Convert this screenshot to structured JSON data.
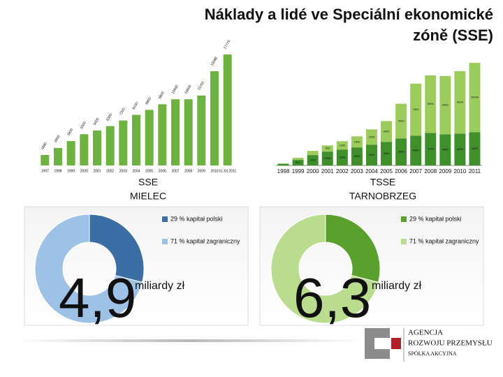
{
  "slide": {
    "title_line1": "Náklady a lidé ve Speciální ekonomické",
    "title_line2": "zóně (SSE)",
    "left_caption_1": "SSE",
    "left_caption_2": "MIELEC",
    "right_caption_1": "TSSE",
    "right_caption_2": "TARNOBRZEG",
    "left_amount": "4,9",
    "left_unit": "miliardy zł",
    "right_amount": "6,3",
    "right_unit": "miliardy zł",
    "logo_1": "AGENCJA",
    "logo_2": "ROZWOJU PRZEMYSŁU",
    "logo_3": "SPÓŁKA AKCYJNA"
  },
  "chart_data": [
    {
      "type": "bar",
      "color": "#6db33f",
      "categories": [
        "1997",
        "1998",
        "1999",
        "2000",
        "2001",
        "2002",
        "2003",
        "2004",
        "2005",
        "2006",
        "2007",
        "2008",
        "2009",
        "2010",
        "31.XII.2011"
      ],
      "values": [
        1680,
        2800,
        3900,
        5000,
        5600,
        6300,
        7200,
        8100,
        8900,
        9800,
        10600,
        10600,
        11200,
        15088,
        17775
      ]
    },
    {
      "type": "stacked_bar",
      "categories": [
        "1998",
        "1999",
        "2000",
        "2001",
        "2002",
        "2003",
        "2004",
        "2005",
        "2006",
        "2007",
        "2008",
        "2009",
        "2010",
        "2011"
      ],
      "series": [
        {
          "color": "#3f8f2a",
          "values": [
            200,
            800,
            1500,
            2000,
            2300,
            2600,
            3000,
            3400,
            3900,
            4300,
            4700,
            4500,
            4600,
            4800
          ]
        },
        {
          "color": "#9ccd5c",
          "values": [
            100,
            300,
            600,
            900,
            1200,
            1600,
            2200,
            3000,
            5000,
            7500,
            8300,
            8400,
            9000,
            10000
          ]
        }
      ]
    },
    {
      "type": "donut",
      "categories": [
        "29 % kapitał polski",
        "71 % kapitał zagraniczny"
      ],
      "values": [
        29,
        71
      ],
      "colors": [
        "#3a6ea5",
        "#9ec2e6"
      ]
    },
    {
      "type": "donut",
      "categories": [
        "29 % kapitał polski",
        "71 % kapitał zagraniczny"
      ],
      "values": [
        29,
        71
      ],
      "colors": [
        "#5aa02c",
        "#b9dc8e"
      ]
    }
  ]
}
